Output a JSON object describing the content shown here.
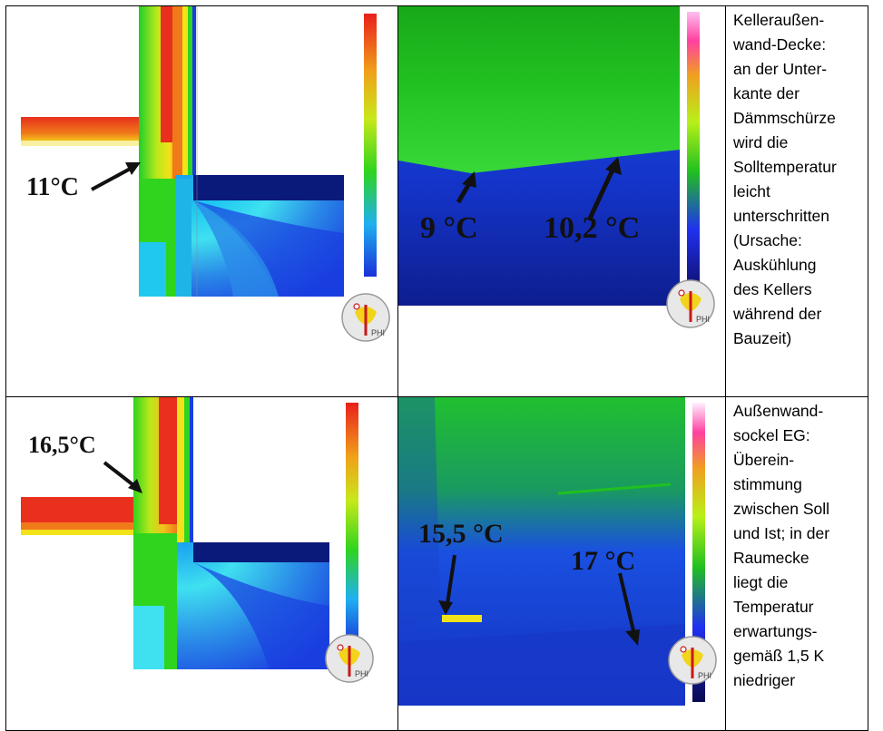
{
  "rows": [
    {
      "simulation": {
        "label": "11°C"
      },
      "thermal": {
        "label_left": "9 °C",
        "label_right": "10,2 °C"
      },
      "note_lines": [
        "Kelleraußen-",
        "wand-Decke:",
        "an der Unter-",
        "kante der",
        "Dämmschürze",
        "wird die",
        "Solltemperatur",
        "leicht",
        "unterschritten",
        "(Ursache:",
        "Auskühlung",
        "des Kellers",
        "während der",
        "Bauzeit)"
      ]
    },
    {
      "simulation": {
        "label": "16,5°C"
      },
      "thermal": {
        "label_left": "15,5 °C",
        "label_right": "17 °C"
      },
      "note_lines": [
        "Außenwand-",
        "sockel EG:",
        "Überein-",
        "stimmung",
        "zwischen Soll",
        "und Ist; in der",
        "Raumecke",
        "liegt die",
        "Temperatur",
        "erwartungs-",
        "gemäß 1,5 K",
        "niedriger"
      ]
    }
  ],
  "logo": {
    "text": "PHI"
  },
  "colors": {
    "red": "#e8301c",
    "orange": "#f07a1a",
    "yellow": "#f2e21a",
    "green": "#2fd41f",
    "blue": "#1a3ee0",
    "navy": "#0a1a7a",
    "cyan": "#3fe0f0",
    "magenta": "#ff40c0"
  }
}
